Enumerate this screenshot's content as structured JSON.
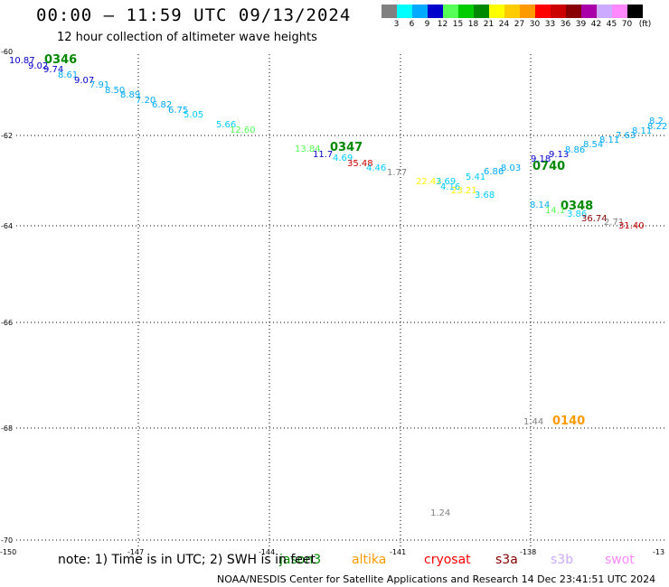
{
  "header": {
    "title": "00:00 – 11:59 UTC 09/13/2024",
    "subtitle": "12 hour collection of altimeter wave heights"
  },
  "legend": {
    "unit": "(ft)",
    "items": [
      {
        "label": "3",
        "color": "#808080"
      },
      {
        "label": "6",
        "color": "#00ffff"
      },
      {
        "label": "9",
        "color": "#00aaff"
      },
      {
        "label": "12",
        "color": "#0000cc"
      },
      {
        "label": "15",
        "color": "#55ff55"
      },
      {
        "label": "18",
        "color": "#00cc00"
      },
      {
        "label": "21",
        "color": "#008800"
      },
      {
        "label": "24",
        "color": "#ffff00"
      },
      {
        "label": "27",
        "color": "#ffcc00"
      },
      {
        "label": "30",
        "color": "#ff9900"
      },
      {
        "label": "33",
        "color": "#ff0000"
      },
      {
        "label": "36",
        "color": "#cc0000"
      },
      {
        "label": "39",
        "color": "#880000"
      },
      {
        "label": "42",
        "color": "#aa00aa"
      },
      {
        "label": "45",
        "color": "#ccaaff"
      },
      {
        "label": "70",
        "color": "#ff88ff"
      },
      {
        "label": "",
        "color": "#000000"
      }
    ]
  },
  "map": {
    "lon_ticks": [
      "-150",
      "-147",
      "-144",
      "-141",
      "-138",
      "-13"
    ],
    "lat_ticks": [
      "-60",
      "-62",
      "-64",
      "-66",
      "-68",
      "-70"
    ],
    "time_labels": [
      {
        "text": "0346",
        "color": "#008800"
      },
      {
        "text": "0347",
        "color": "#008800"
      },
      {
        "text": "0740",
        "color": "#008800"
      },
      {
        "text": "0348",
        "color": "#008800"
      },
      {
        "text": "0140",
        "color": "#ff9900"
      }
    ],
    "wave_heights": [
      {
        "text": "10.87",
        "color": "#0000cc"
      },
      {
        "text": "9.02",
        "color": "#0000cc"
      },
      {
        "text": "9.74",
        "color": "#0000cc"
      },
      {
        "text": "8.61",
        "color": "#00aaff"
      },
      {
        "text": "9.07",
        "color": "#0000cc"
      },
      {
        "text": "7.91",
        "color": "#00aaff"
      },
      {
        "text": "8.50",
        "color": "#00aaff"
      },
      {
        "text": "8.89",
        "color": "#00aaff"
      },
      {
        "text": "7.20",
        "color": "#00aaff"
      },
      {
        "text": "6.82",
        "color": "#00aaff"
      },
      {
        "text": "6.75",
        "color": "#00aaff"
      },
      {
        "text": "5.05",
        "color": "#00ccff"
      },
      {
        "text": "5.66",
        "color": "#00ccff"
      },
      {
        "text": "12.60",
        "color": "#55ff55"
      },
      {
        "text": "13.84",
        "color": "#55ff55"
      },
      {
        "text": "11.7",
        "color": "#0000cc"
      },
      {
        "text": "4.69",
        "color": "#00ccff"
      },
      {
        "text": "35.48",
        "color": "#cc0000"
      },
      {
        "text": "4.46",
        "color": "#00ccff"
      },
      {
        "text": "1.77",
        "color": "#808080"
      },
      {
        "text": "22.42",
        "color": "#ffff00"
      },
      {
        "text": "3.69",
        "color": "#00ccff"
      },
      {
        "text": "4.16",
        "color": "#00ccff"
      },
      {
        "text": "23.21",
        "color": "#ffff00"
      },
      {
        "text": "5.41",
        "color": "#00ccff"
      },
      {
        "text": "6.86",
        "color": "#00aaff"
      },
      {
        "text": "3.68",
        "color": "#00ccff"
      },
      {
        "text": "8.03",
        "color": "#00aaff"
      },
      {
        "text": "9.18",
        "color": "#0000cc"
      },
      {
        "text": "9.13",
        "color": "#0000cc"
      },
      {
        "text": "8.86",
        "color": "#00aaff"
      },
      {
        "text": "8.54",
        "color": "#00aaff"
      },
      {
        "text": "8.11",
        "color": "#00aaff"
      },
      {
        "text": "7.63",
        "color": "#00aaff"
      },
      {
        "text": "8.11",
        "color": "#00aaff"
      },
      {
        "text": "8.22",
        "color": "#00aaff"
      },
      {
        "text": "8.2",
        "color": "#00aaff"
      },
      {
        "text": "8.14",
        "color": "#00aaff"
      },
      {
        "text": "14.1",
        "color": "#55ff55"
      },
      {
        "text": "3.86",
        "color": "#00ccff"
      },
      {
        "text": "36.74",
        "color": "#880000"
      },
      {
        "text": "2.71",
        "color": "#808080"
      },
      {
        "text": "31.40",
        "color": "#cc0000"
      },
      {
        "text": "1.44",
        "color": "#808080"
      },
      {
        "text": "1.24",
        "color": "#808080"
      }
    ]
  },
  "note": "note:  1) Time is in UTC; 2) SWH is in feet",
  "satellites": [
    {
      "name": "jason3",
      "color": "#008800"
    },
    {
      "name": "altika",
      "color": "#ff9900"
    },
    {
      "name": "cryosat",
      "color": "#ff0000"
    },
    {
      "name": "s3a",
      "color": "#880000"
    },
    {
      "name": "s3b",
      "color": "#ccaaff"
    },
    {
      "name": "swot",
      "color": "#ff88ff"
    }
  ],
  "footer": "NOAA/NESDIS Center for Satellite Applications and Research    14 Dec 23:41:51 UTC 2024"
}
